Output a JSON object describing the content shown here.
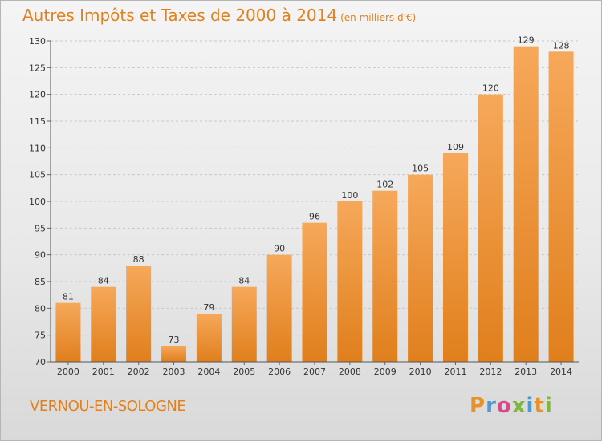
{
  "header": {
    "title": "Autres Impôts et Taxes de 2000 à 2014",
    "unit": "(en milliers d'€)"
  },
  "footer": {
    "city": "VERNOU-EN-SOLOGNE",
    "logo_letters": [
      "P",
      "r",
      "o",
      "x",
      "i",
      "t",
      "i"
    ]
  },
  "colors": {
    "accent": "#e0811e",
    "bar_light": "#f6a85a",
    "bar_dark": "#e07f1c",
    "logo": [
      "#e8902a",
      "#4a9ad6",
      "#d64a8c",
      "#7db83a",
      "#4a9ad6",
      "#e8902a",
      "#7db83a"
    ]
  },
  "chart_data": {
    "type": "bar",
    "categories": [
      "2000",
      "2001",
      "2002",
      "2003",
      "2004",
      "2005",
      "2006",
      "2007",
      "2008",
      "2009",
      "2010",
      "2011",
      "2012",
      "2013",
      "2014"
    ],
    "values": [
      81,
      84,
      88,
      73,
      79,
      84,
      90,
      96,
      100,
      102,
      105,
      109,
      120,
      129,
      128
    ],
    "title": "Autres Impôts et Taxes de 2000 à 2014",
    "xlabel": "",
    "ylabel": "",
    "ylim": [
      70,
      130
    ],
    "yticks": [
      70,
      75,
      80,
      85,
      90,
      95,
      100,
      105,
      110,
      115,
      120,
      125,
      130
    ],
    "grid": true,
    "legend": "none"
  }
}
